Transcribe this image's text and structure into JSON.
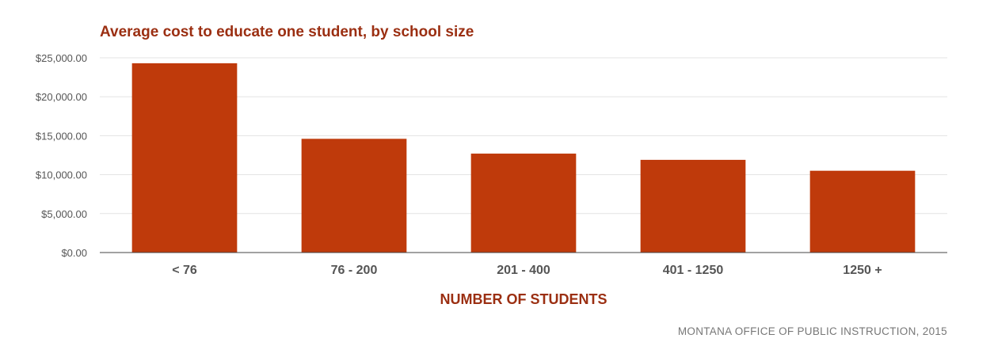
{
  "chart_data": {
    "type": "bar",
    "title": "Average cost to educate one student, by school size",
    "xlabel": "NUMBER OF STUDENTS",
    "ylabel": "",
    "categories": [
      "< 76",
      "76 - 200",
      "201 - 400",
      "401 - 1250",
      "1250 +"
    ],
    "values": [
      24300,
      14600,
      12700,
      11900,
      10500
    ],
    "ylim": [
      0,
      25000
    ],
    "yticks": [
      0,
      5000,
      10000,
      15000,
      20000,
      25000
    ],
    "ytick_labels": [
      "$0.00",
      "$5,000.00",
      "$10,000.00",
      "$15,000.00",
      "$20,000.00",
      "$25,000.00"
    ],
    "grid": true,
    "legend": "none",
    "bar_color": "#bf3a0b",
    "source": "MONTANA OFFICE OF PUBLIC INSTRUCTION, 2015"
  }
}
